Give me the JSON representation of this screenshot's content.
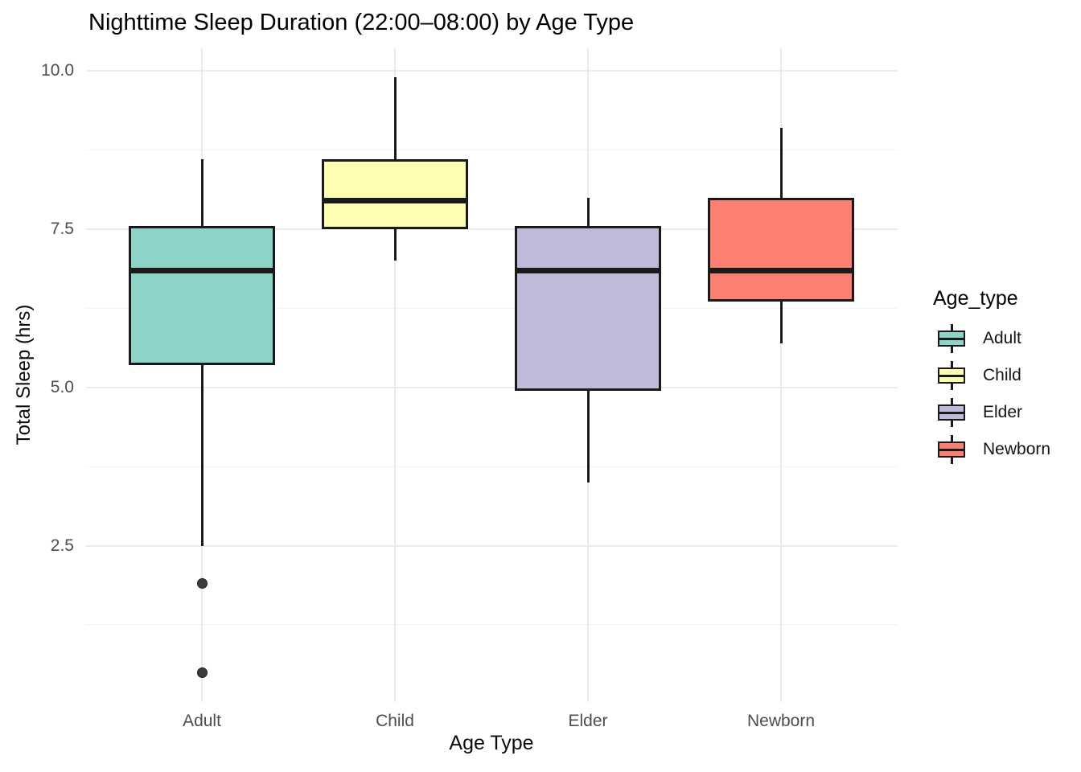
{
  "title": "Nighttime Sleep Duration (22:00–08:00) by Age Type",
  "axes": {
    "x_label": "Age Type",
    "y_label": "Total Sleep (hrs)"
  },
  "legend": {
    "title": "Age_type",
    "items": [
      {
        "label": "Adult",
        "color": "#8DD3C7"
      },
      {
        "label": "Child",
        "color": "#FFFFB3"
      },
      {
        "label": "Elder",
        "color": "#BEBADA"
      },
      {
        "label": "Newborn",
        "color": "#FB8072"
      }
    ]
  },
  "chart_data": {
    "type": "boxplot",
    "title": "Nighttime Sleep Duration (22:00–08:00) by Age Type",
    "xlabel": "Age Type",
    "ylabel": "Total Sleep (hrs)",
    "ylim": [
      0,
      10.4
    ],
    "grid": true,
    "legend_position": "right",
    "categories": [
      "Adult",
      "Child",
      "Elder",
      "Newborn"
    ],
    "y_ticks": [
      {
        "value": 10.0,
        "label": "10.0"
      },
      {
        "value": 7.5,
        "label": "7.5"
      },
      {
        "value": 5.0,
        "label": "5.0"
      },
      {
        "value": 2.5,
        "label": "2.5"
      }
    ],
    "y_minor_gridlines": [
      8.75,
      6.25,
      3.75,
      1.25
    ],
    "series": [
      {
        "name": "Adult",
        "color": "#8DD3C7",
        "min": 2.5,
        "q1": 5.35,
        "median": 6.85,
        "q3": 7.55,
        "max": 8.6,
        "outliers": [
          1.9,
          0.5
        ]
      },
      {
        "name": "Child",
        "color": "#FFFFB3",
        "min": 7.0,
        "q1": 7.5,
        "median": 7.95,
        "q3": 8.6,
        "max": 9.9,
        "outliers": []
      },
      {
        "name": "Elder",
        "color": "#BEBADA",
        "min": 3.5,
        "q1": 4.95,
        "median": 6.85,
        "q3": 7.55,
        "max": 8.0,
        "outliers": []
      },
      {
        "name": "Newborn",
        "color": "#FB8072",
        "min": 5.7,
        "q1": 6.35,
        "median": 6.85,
        "q3": 8.0,
        "max": 9.1,
        "outliers": []
      }
    ],
    "style": {
      "box_border_color": "#1A1A1A",
      "outlier_color": "#3C3C3C",
      "grid_major_color": "#EBEBEB",
      "grid_minor_color": "#F4F4F4",
      "tick_text_color": "#4D4D4D",
      "title_color": "#000000"
    }
  }
}
